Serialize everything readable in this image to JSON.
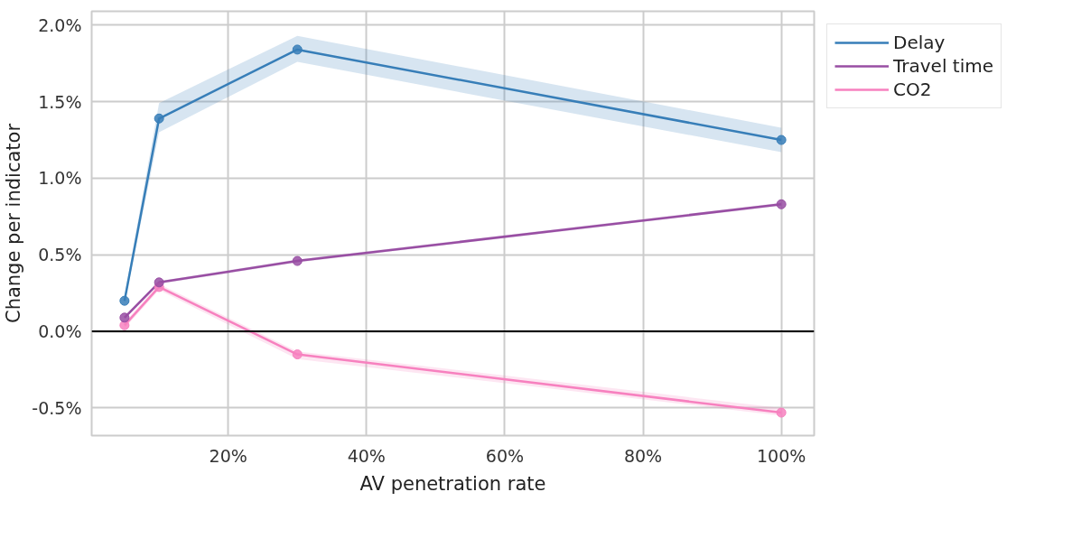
{
  "chart_data": {
    "type": "line",
    "xlabel": "AV penetration rate",
    "ylabel": "Change per indicator",
    "x": [
      5,
      10,
      30,
      100
    ],
    "series": [
      {
        "name": "Delay",
        "color": "#377eb8",
        "values": [
          0.2,
          1.39,
          1.84,
          1.25
        ],
        "lower": [
          0.18,
          1.3,
          1.76,
          1.17
        ],
        "upper": [
          0.23,
          1.49,
          1.93,
          1.33
        ]
      },
      {
        "name": "Travel time",
        "color": "#984ea3",
        "values": [
          0.09,
          0.32,
          0.46,
          0.83
        ],
        "lower": [
          0.08,
          0.31,
          0.45,
          0.82
        ],
        "upper": [
          0.1,
          0.33,
          0.47,
          0.84
        ]
      },
      {
        "name": "CO2",
        "color": "#f781bf",
        "values": [
          0.04,
          0.29,
          -0.15,
          -0.53
        ],
        "lower": [
          0.02,
          0.27,
          -0.18,
          -0.55
        ],
        "upper": [
          0.06,
          0.31,
          -0.13,
          -0.5
        ]
      }
    ],
    "xlim": [
      0.25,
      104.75
    ],
    "ylim": [
      -0.68,
      2.09
    ],
    "xticks": [
      {
        "value": 20,
        "label": "20%"
      },
      {
        "value": 40,
        "label": "40%"
      },
      {
        "value": 60,
        "label": "60%"
      },
      {
        "value": 80,
        "label": "80%"
      },
      {
        "value": 100,
        "label": "100%"
      }
    ],
    "yticks": [
      {
        "value": -0.5,
        "label": "-0.5%"
      },
      {
        "value": 0,
        "label": "0.0%"
      },
      {
        "value": 0.5,
        "label": "0.5%"
      },
      {
        "value": 1.0,
        "label": "1.0%"
      },
      {
        "value": 1.5,
        "label": "1.5%"
      },
      {
        "value": 2.0,
        "label": "2.0%"
      }
    ],
    "ref_lines": [
      {
        "axis": "y",
        "value": 0,
        "color": "#000000"
      }
    ],
    "grid": true,
    "legend": "top right",
    "marker": "circle",
    "line_style": "solid"
  }
}
